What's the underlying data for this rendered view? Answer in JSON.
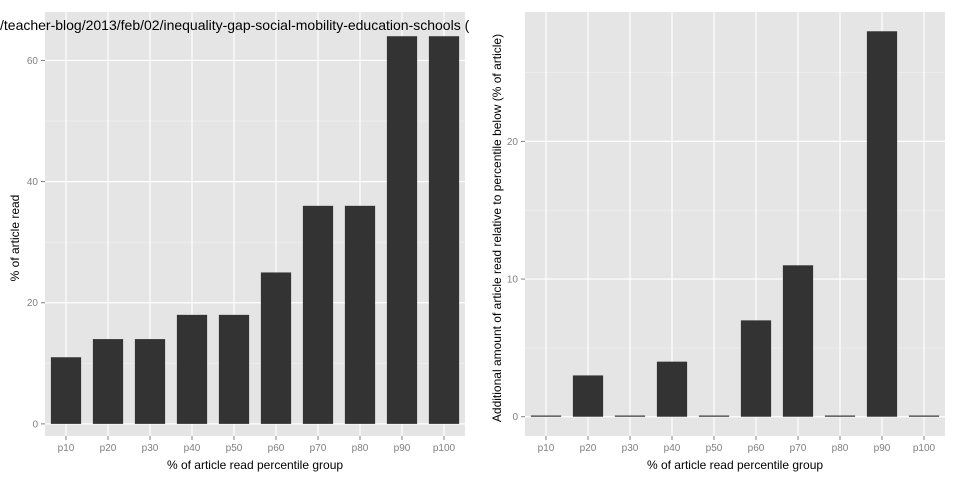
{
  "chart_data": [
    {
      "type": "bar",
      "title": "/teacher-blog/2013/feb/02/inequality-gap-social-mobility-education-schools (",
      "xlabel": "% of article read percentile group",
      "ylabel": "% of article read",
      "categories": [
        "p10",
        "p20",
        "p30",
        "p40",
        "p50",
        "p60",
        "p70",
        "p80",
        "p90",
        "p100"
      ],
      "values": [
        11,
        14,
        14,
        18,
        18,
        25,
        36,
        36,
        64,
        64
      ],
      "ylim": [
        -2,
        68
      ],
      "yticks": [
        0,
        20,
        40,
        60
      ],
      "grid": true,
      "bar_color": "#333333",
      "panel_color": "#e5e5e5"
    },
    {
      "type": "bar",
      "title": "",
      "xlabel": "% of article read percentile group",
      "ylabel": "Additional amount of article read relative to percentile below (% of article)",
      "categories": [
        "p10",
        "p20",
        "p30",
        "p40",
        "p50",
        "p60",
        "p70",
        "p80",
        "p90",
        "p100"
      ],
      "values": [
        0,
        3,
        0,
        4,
        0,
        7,
        11,
        0,
        28,
        0
      ],
      "ylim": [
        -1.4,
        29.4
      ],
      "yticks": [
        0,
        10,
        20
      ],
      "grid": true,
      "bar_color": "#333333",
      "panel_color": "#e5e5e5"
    }
  ]
}
